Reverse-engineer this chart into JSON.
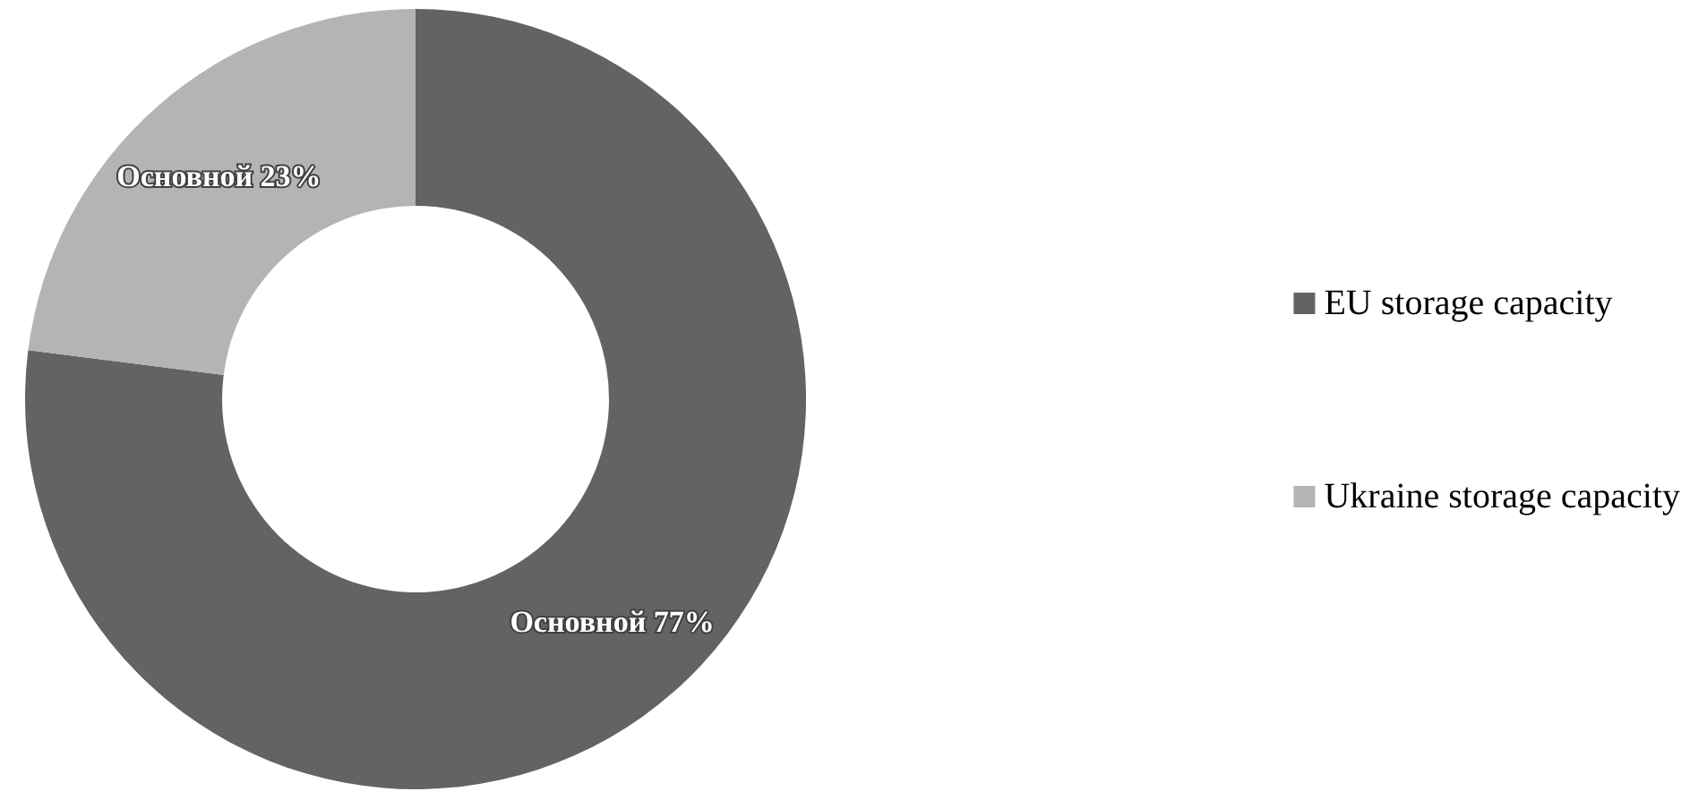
{
  "chart_data": {
    "type": "donut",
    "categories": [
      "EU storage capacity",
      "Ukraine storage capacity"
    ],
    "values": [
      77,
      23
    ],
    "colors": [
      "#636363",
      "#b4b4b4"
    ],
    "value_labels": [
      "Основной 77%",
      "Основной 23%"
    ],
    "legend": "right"
  }
}
